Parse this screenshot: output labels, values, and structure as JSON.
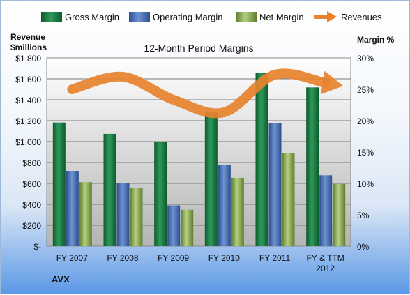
{
  "chart_data": {
    "type": "bar",
    "title": "12-Month Period Margins",
    "company": "AVX",
    "y_left_label": [
      "Revenue",
      "$millions"
    ],
    "y_right_label": "Margin %",
    "categories": [
      [
        "FY 2007"
      ],
      [
        "FY 2008"
      ],
      [
        "FY 2009"
      ],
      [
        "FY 2010"
      ],
      [
        "FY 2011"
      ],
      [
        "FY & TTM",
        "2012"
      ]
    ],
    "y_left_ticks": [
      "$-",
      "$200",
      "$400",
      "$600",
      "$800",
      "$1,000",
      "$1,200",
      "$1,400",
      "$1,600",
      "$1,800"
    ],
    "y_right_ticks": [
      "0%",
      "5%",
      "10%",
      "15%",
      "20%",
      "25%",
      "30%"
    ],
    "ylim_left": [
      0,
      1800
    ],
    "ylim_right": [
      0,
      30
    ],
    "series": [
      {
        "name": "Gross Margin",
        "axis": "right",
        "values": [
          19.7,
          17.9,
          16.6,
          21.3,
          27.6,
          25.3
        ],
        "color": "#1f7a45"
      },
      {
        "name": "Operating Margin",
        "axis": "right",
        "values": [
          12.0,
          10.1,
          6.5,
          12.9,
          19.6,
          11.3
        ],
        "color": "#4a6fb0"
      },
      {
        "name": "Net Margin",
        "axis": "right",
        "values": [
          10.2,
          9.3,
          5.8,
          10.9,
          14.8,
          9.9
        ],
        "color": "#8fae55"
      },
      {
        "name": "Revenues",
        "axis": "left",
        "type": "line",
        "values": [
          1500,
          1620,
          1400,
          1280,
          1640,
          1560
        ],
        "color": "#e8822e"
      }
    ],
    "grid": true,
    "legend": "top"
  }
}
